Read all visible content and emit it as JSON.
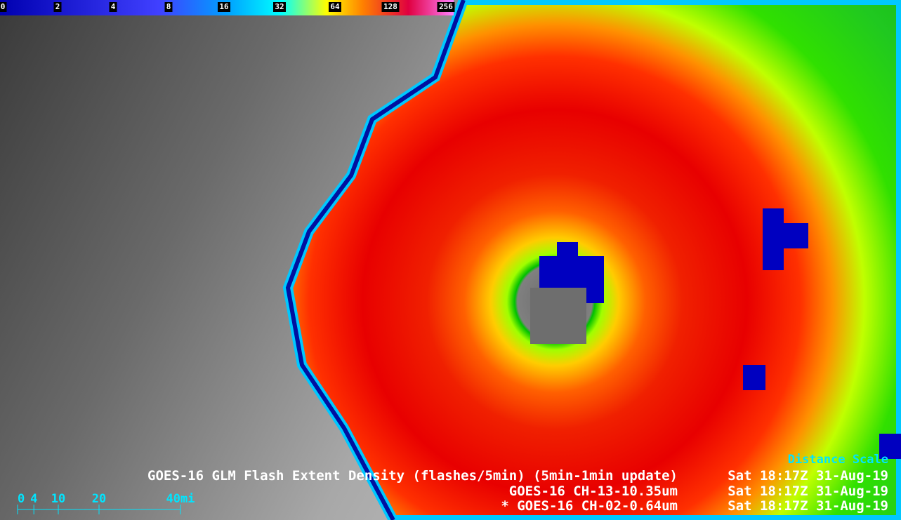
{
  "colorbar": {
    "ticks": [
      0,
      2,
      4,
      8,
      16,
      32,
      64,
      128,
      256
    ]
  },
  "overlay": [
    {
      "label": "GOES-16 GLM Flash Extent Density (flashes/5min) (5min-1min update)",
      "time": "Sat 18:17Z 31-Aug-19"
    },
    {
      "label": "GOES-16 CH-13-10.35um",
      "time": "Sat 18:17Z 31-Aug-19"
    },
    {
      "label": "* GOES-16 CH-02-0.64um",
      "time": "Sat 18:17Z 31-Aug-19"
    }
  ],
  "distance_scale": {
    "title": "Distance Scale",
    "ticks": [
      0,
      4,
      10,
      20,
      {
        "value": 40,
        "label": "40mi"
      }
    ]
  }
}
